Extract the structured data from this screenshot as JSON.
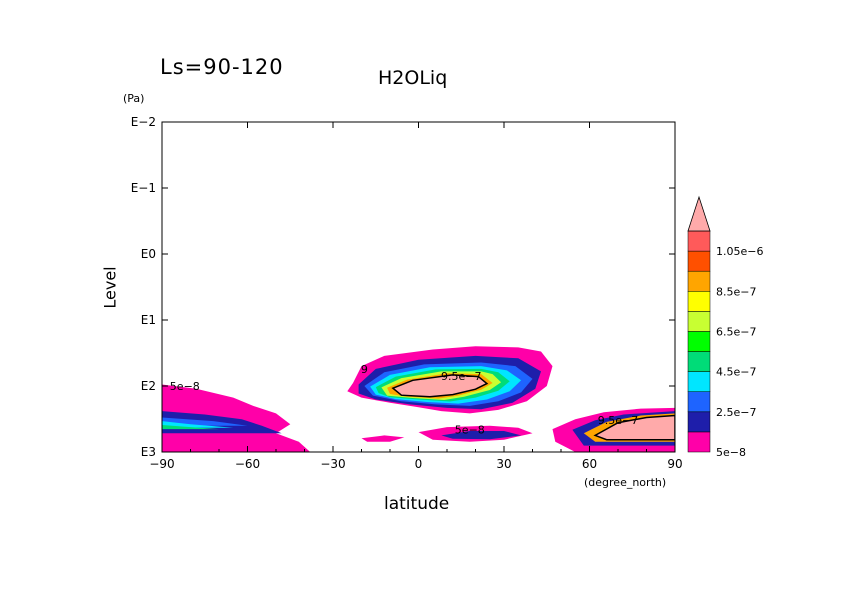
{
  "header": {
    "season_label": "Ls=90-120",
    "title": "H2OLiq"
  },
  "axes": {
    "ylabel": "Level",
    "yunit": "(Pa)",
    "xlabel": "latitude",
    "xunit": "(degree_north)"
  },
  "chart_data": {
    "type": "heatmap",
    "title": "H2OLiq",
    "subtitle": "Ls=90-120",
    "xlabel": "latitude",
    "xunit": "(degree_north)",
    "ylabel": "Level",
    "yunit": "(Pa)",
    "xlim": [
      -90,
      90
    ],
    "x_ticks": [
      -90,
      -60,
      -30,
      0,
      30,
      60,
      90
    ],
    "x_tick_labels": [
      "−90",
      "−60",
      "−30",
      "0",
      "30",
      "60",
      "90"
    ],
    "ylim": [
      1000,
      0.01
    ],
    "yscale": "log",
    "y_ticks": [
      0.01,
      0.1,
      1,
      10,
      100,
      1000
    ],
    "y_tick_labels": [
      "E−2",
      "E−1",
      "E0",
      "E1",
      "E2",
      "E3"
    ],
    "colorbar": {
      "levels": [
        5e-08,
        1.5e-07,
        2.5e-07,
        3.5e-07,
        4.5e-07,
        5.5e-07,
        6.5e-07,
        7.5e-07,
        8.5e-07,
        9.5e-07,
        1.05e-06
      ],
      "colors": [
        "#ff00a8",
        "#1e1eaa",
        "#1e64ff",
        "#00e6ff",
        "#00dc78",
        "#00ff00",
        "#c8ff32",
        "#ffff00",
        "#ffa500",
        "#ff5000",
        "#ff5a5a",
        "#ffaaaa"
      ],
      "labels": [
        "5e−8",
        "2.5e−7",
        "4.5e−7",
        "6.5e−7",
        "8.5e−7",
        "1.05e−6"
      ],
      "extend": "max"
    },
    "contour_labels": [
      {
        "text": "5e−8",
        "lat": -82,
        "p": 100
      },
      {
        "text": "5e−8",
        "lat": 18,
        "p": 460
      },
      {
        "text": "9.5e−7",
        "lat": 15,
        "p": 70
      },
      {
        "text": "9.5e−7",
        "lat": 70,
        "p": 330
      },
      {
        "text": "9",
        "lat": -19,
        "p": 55
      }
    ]
  }
}
